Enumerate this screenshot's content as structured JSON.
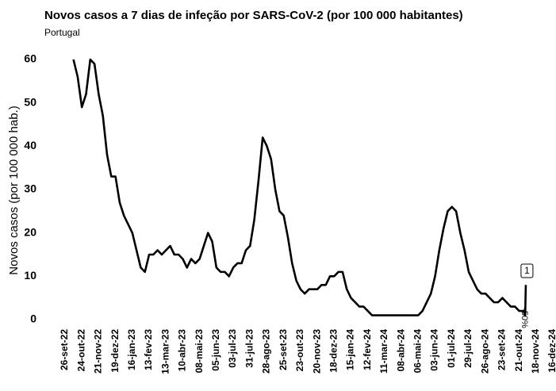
{
  "chart_data": {
    "type": "line",
    "title": "Novos casos a 7 dias de infeção por SARS-CoV-2 (por 100 000 habitantes)",
    "subtitle": "Portugal",
    "ylabel": "Novos casos (por 100 000 hab.)",
    "color": "#000000",
    "grid": false,
    "x": [
      "2022-10-10",
      "2022-10-17",
      "2022-10-24",
      "2022-10-31",
      "2022-11-07",
      "2022-11-14",
      "2022-11-21",
      "2022-11-28",
      "2022-12-05",
      "2022-12-12",
      "2022-12-19",
      "2022-12-26",
      "2023-01-02",
      "2023-01-09",
      "2023-01-16",
      "2023-01-23",
      "2023-01-30",
      "2023-02-06",
      "2023-02-13",
      "2023-02-20",
      "2023-02-27",
      "2023-03-06",
      "2023-03-13",
      "2023-03-20",
      "2023-03-27",
      "2023-04-03",
      "2023-04-10",
      "2023-04-17",
      "2023-04-24",
      "2023-05-01",
      "2023-05-08",
      "2023-05-15",
      "2023-05-22",
      "2023-05-29",
      "2023-06-05",
      "2023-06-12",
      "2023-06-19",
      "2023-06-26",
      "2023-07-03",
      "2023-07-10",
      "2023-07-17",
      "2023-07-24",
      "2023-07-31",
      "2023-08-07",
      "2023-08-14",
      "2023-08-21",
      "2023-08-28",
      "2023-09-04",
      "2023-09-11",
      "2023-09-18",
      "2023-09-25",
      "2023-10-02",
      "2023-10-09",
      "2023-10-16",
      "2023-10-23",
      "2023-10-30",
      "2023-11-06",
      "2023-11-13",
      "2023-11-20",
      "2023-11-27",
      "2023-12-04",
      "2023-12-11",
      "2023-12-18",
      "2023-12-25",
      "2024-01-01",
      "2024-01-08",
      "2024-01-15",
      "2024-01-22",
      "2024-01-29",
      "2024-02-05",
      "2024-02-12",
      "2024-02-19",
      "2024-03-04",
      "2024-03-18",
      "2024-04-01",
      "2024-04-15",
      "2024-04-29",
      "2024-05-06",
      "2024-05-13",
      "2024-05-20",
      "2024-05-27",
      "2024-06-03",
      "2024-06-10",
      "2024-06-17",
      "2024-06-24",
      "2024-07-01",
      "2024-07-08",
      "2024-07-15",
      "2024-07-22",
      "2024-07-29",
      "2024-08-05",
      "2024-08-12",
      "2024-08-19",
      "2024-08-26",
      "2024-09-02",
      "2024-09-09",
      "2024-09-16",
      "2024-09-23",
      "2024-09-30",
      "2024-10-07",
      "2024-10-14",
      "2024-10-21",
      "2024-10-28",
      "2024-10-31",
      "2024-11-01"
    ],
    "values": [
      60,
      56,
      49,
      52,
      60,
      59,
      52,
      47,
      38,
      33,
      33,
      27,
      24,
      22,
      20,
      16,
      12,
      11,
      15,
      15,
      16,
      15,
      16,
      17,
      15,
      15,
      14,
      12,
      14,
      13,
      14,
      17,
      20,
      18,
      12,
      11,
      11,
      10,
      12,
      13,
      13,
      16,
      17,
      23,
      32,
      42,
      40,
      37,
      30,
      25,
      24,
      19,
      13,
      9,
      7,
      6,
      7,
      7,
      7,
      8,
      8,
      10,
      10,
      11,
      11,
      7,
      5,
      4,
      3,
      3,
      2,
      1,
      1,
      1,
      1,
      1,
      1,
      1,
      2,
      4,
      6,
      10,
      16,
      21,
      25,
      26,
      25,
      20,
      16,
      11,
      9,
      7,
      6,
      6,
      5,
      4,
      4,
      5,
      4,
      3,
      3,
      2,
      2,
      1,
      8
    ],
    "xlim": [
      "2022-09-26",
      "2024-12-16"
    ],
    "xticks": [
      {
        "value": "2022-09-26",
        "label": "26-set-22"
      },
      {
        "value": "2022-10-24",
        "label": "24-out-22"
      },
      {
        "value": "2022-11-21",
        "label": "21-nov-22"
      },
      {
        "value": "2022-12-19",
        "label": "19-dez-22"
      },
      {
        "value": "2023-01-16",
        "label": "16-jan-23"
      },
      {
        "value": "2023-02-13",
        "label": "13-fev-23"
      },
      {
        "value": "2023-03-13",
        "label": "13-mar-23"
      },
      {
        "value": "2023-04-10",
        "label": "10-abr-23"
      },
      {
        "value": "2023-05-08",
        "label": "08-mai-23"
      },
      {
        "value": "2023-06-05",
        "label": "05-jun-23"
      },
      {
        "value": "2023-07-03",
        "label": "03-jul-23"
      },
      {
        "value": "2023-07-31",
        "label": "31-jul-23"
      },
      {
        "value": "2023-08-28",
        "label": "28-ago-23"
      },
      {
        "value": "2023-09-25",
        "label": "25-set-23"
      },
      {
        "value": "2023-10-23",
        "label": "23-out-23"
      },
      {
        "value": "2023-11-20",
        "label": "20-nov-23"
      },
      {
        "value": "2023-12-18",
        "label": "18-dez-23"
      },
      {
        "value": "2024-01-15",
        "label": "15-jan-24"
      },
      {
        "value": "2024-02-12",
        "label": "12-fev-24"
      },
      {
        "value": "2024-03-11",
        "label": "11-mar-24"
      },
      {
        "value": "2024-04-08",
        "label": "08-abr-24"
      },
      {
        "value": "2024-05-06",
        "label": "06-mai-24"
      },
      {
        "value": "2024-06-03",
        "label": "03-jun-24"
      },
      {
        "value": "2024-07-01",
        "label": "01-jul-24"
      },
      {
        "value": "2024-07-29",
        "label": "29-jul-24"
      },
      {
        "value": "2024-08-26",
        "label": "26-ago-24"
      },
      {
        "value": "2024-09-23",
        "label": "23-set-24"
      },
      {
        "value": "2024-10-21",
        "label": "21-out-24"
      },
      {
        "value": "2024-11-18",
        "label": "18-nov-24"
      },
      {
        "value": "2024-12-16",
        "label": "16-dez-24"
      }
    ],
    "ylim": [
      0,
      60
    ],
    "yticks": [
      0,
      10,
      20,
      30,
      40,
      50,
      60
    ],
    "annotations": [
      {
        "text": "1"
      },
      {
        "text": "-50%"
      }
    ]
  }
}
